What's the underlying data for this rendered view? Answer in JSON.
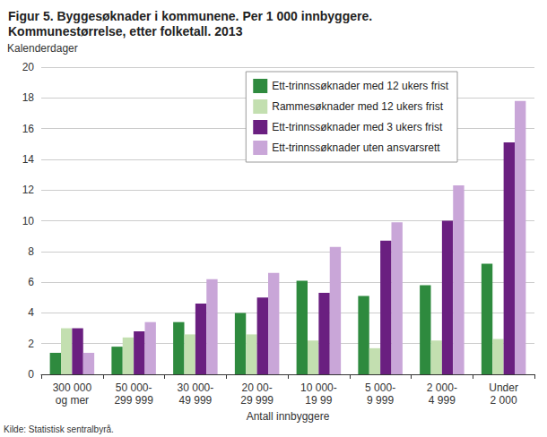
{
  "chart_data": {
    "type": "bar",
    "title": "Figur 5. Byggesøknader i kommunene. Per 1 000 innbyggere.\nKommunestørrelse, etter folketall. 2013",
    "y_label": "Kalenderdager",
    "x_label": "Antall innbyggere",
    "annotations": [
      "Kilde: Statistisk sentralbyrå."
    ],
    "categories": [
      "300 000\nog mer",
      "50 000-\n299 999",
      "30 000-\n49 999",
      "20 00-\n29 999",
      "10 000-\n19 99",
      "5 000-\n9 999",
      "2 000-\n4 999",
      "Under\n2 000"
    ],
    "series": [
      {
        "name": "Ett-trinnssøknader med 12 ukers frist",
        "color": "#2e8a3e",
        "values": [
          1.4,
          1.8,
          3.4,
          4.0,
          6.1,
          5.1,
          5.8,
          7.2
        ]
      },
      {
        "name": "Rammesøknader med 12 ukers frist",
        "color": "#c3dfb0",
        "values": [
          3.0,
          2.4,
          2.6,
          2.6,
          2.2,
          1.7,
          2.2,
          2.3
        ]
      },
      {
        "name": "Ett-trinnssøknader med 3 ukers frist",
        "color": "#6a1f80",
        "values": [
          3.0,
          2.8,
          4.6,
          5.0,
          5.3,
          8.7,
          10.0,
          15.1
        ]
      },
      {
        "name": "Ett-trinnssøknader uten ansvarsrett",
        "color": "#c9a6d8",
        "values": [
          1.4,
          3.4,
          6.2,
          6.6,
          8.3,
          9.9,
          12.3,
          17.8
        ]
      }
    ],
    "ylim": [
      0,
      20
    ],
    "yticks": [
      0,
      2,
      4,
      6,
      8,
      10,
      12,
      14,
      16,
      18,
      20
    ],
    "grid": true,
    "legend": "top-right"
  }
}
